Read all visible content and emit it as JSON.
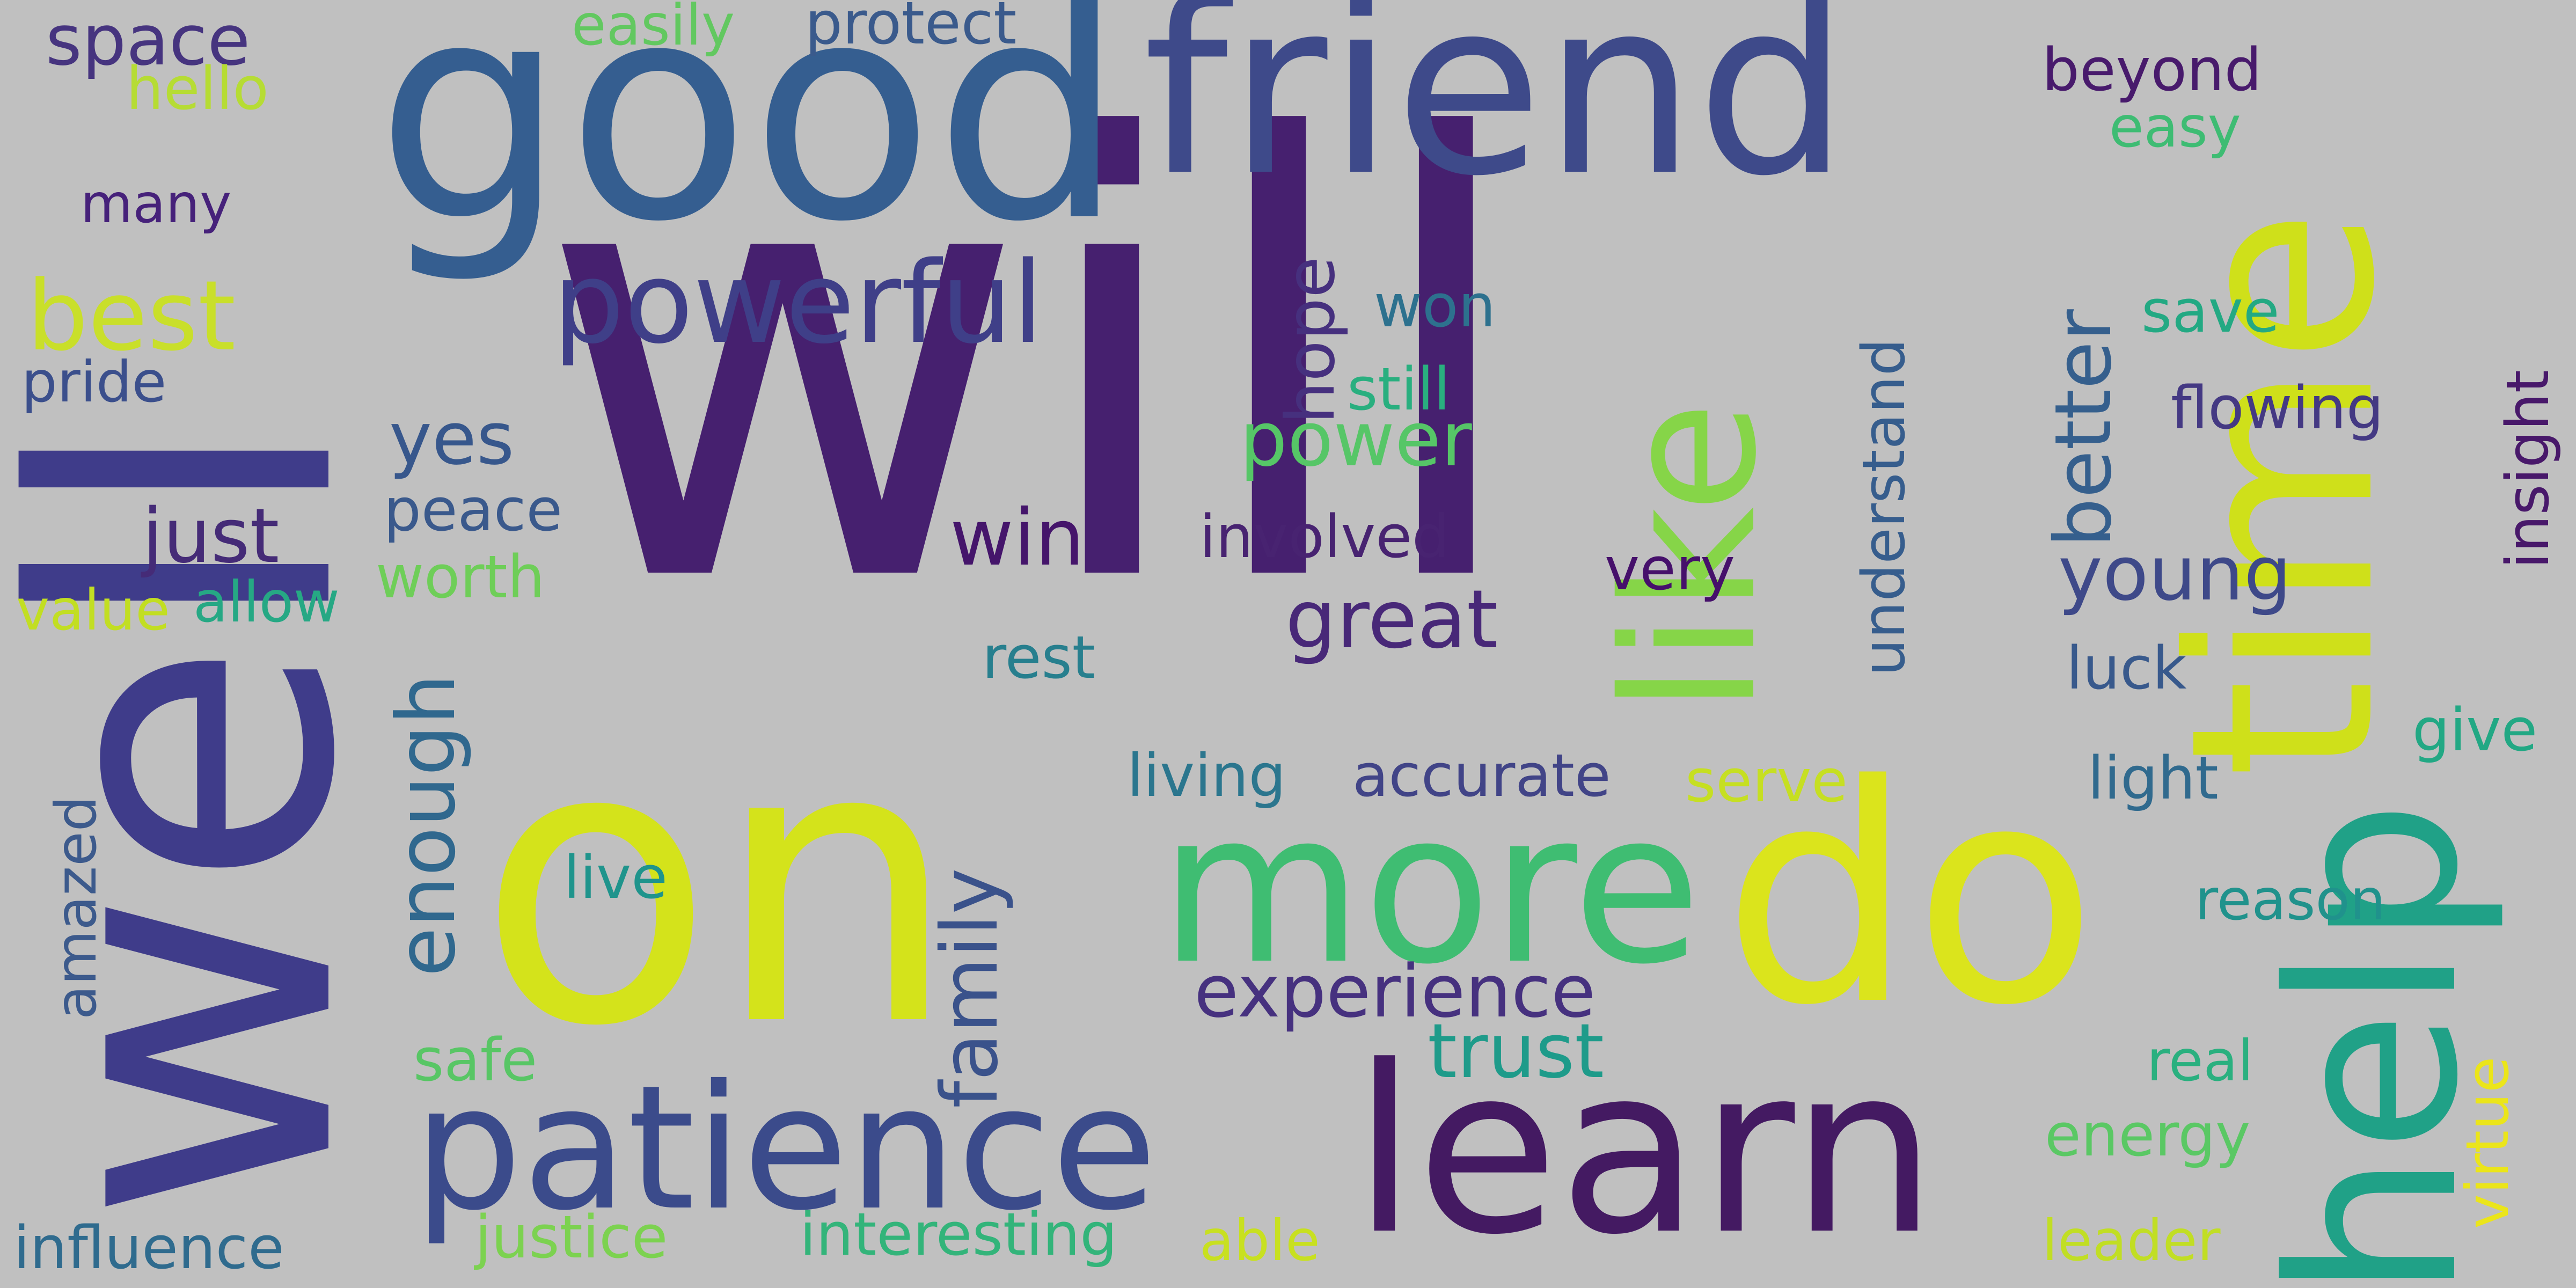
{
  "words": [
    {
      "text": "will",
      "color": "#46206f",
      "rotated": false
    },
    {
      "text": "well",
      "color": "#3f3c8a",
      "rotated": true
    },
    {
      "text": "on",
      "color": "#d4e31b",
      "rotated": false
    },
    {
      "text": "good",
      "color": "#355e90",
      "rotated": false
    },
    {
      "text": "friend",
      "color": "#3e4a8a",
      "rotated": false
    },
    {
      "text": "time",
      "color": "#cfe01a",
      "rotated": true
    },
    {
      "text": "like",
      "color": "#86d548",
      "rotated": true
    },
    {
      "text": "help",
      "color": "#20a187",
      "rotated": true
    },
    {
      "text": "do",
      "color": "#dbe41c",
      "rotated": false
    },
    {
      "text": "more",
      "color": "#3fbd72",
      "rotated": false
    },
    {
      "text": "learn",
      "color": "#441a62",
      "rotated": false
    },
    {
      "text": "patience",
      "color": "#3b4b8b",
      "rotated": false
    },
    {
      "text": "powerful",
      "color": "#3f3f88",
      "rotated": false
    },
    {
      "text": "best",
      "color": "#c9df2a",
      "rotated": false
    },
    {
      "text": "space",
      "color": "#46347f",
      "rotated": false
    },
    {
      "text": "hello",
      "color": "#b6dc34",
      "rotated": false
    },
    {
      "text": "easily",
      "color": "#62c860",
      "rotated": false
    },
    {
      "text": "protect",
      "color": "#3a5a8c",
      "rotated": false
    },
    {
      "text": "many",
      "color": "#46217a",
      "rotated": false
    },
    {
      "text": "pride",
      "color": "#3b4f8c",
      "rotated": false
    },
    {
      "text": "yes",
      "color": "#37578c",
      "rotated": false
    },
    {
      "text": "just",
      "color": "#452b77",
      "rotated": false
    },
    {
      "text": "peace",
      "color": "#3a598c",
      "rotated": false
    },
    {
      "text": "worth",
      "color": "#6ece58",
      "rotated": false
    },
    {
      "text": "allow",
      "color": "#26a884",
      "rotated": false
    },
    {
      "text": "value",
      "color": "#c2de22",
      "rotated": false
    },
    {
      "text": "enough",
      "color": "#30688e",
      "rotated": true
    },
    {
      "text": "amazed",
      "color": "#3c5a8c",
      "rotated": true
    },
    {
      "text": "live",
      "color": "#1f948c",
      "rotated": false
    },
    {
      "text": "safe",
      "color": "#58c665",
      "rotated": false
    },
    {
      "text": "influence",
      "color": "#2f6b8e",
      "rotated": false
    },
    {
      "text": "justice",
      "color": "#7cd250",
      "rotated": false
    },
    {
      "text": "interesting",
      "color": "#33b47a",
      "rotated": false
    },
    {
      "text": "able",
      "color": "#c8e020",
      "rotated": false
    },
    {
      "text": "family",
      "color": "#3a528b",
      "rotated": true
    },
    {
      "text": "experience",
      "color": "#46317f",
      "rotated": false
    },
    {
      "text": "trust",
      "color": "#1e9b8a",
      "rotated": false
    },
    {
      "text": "living",
      "color": "#2b768e",
      "rotated": false
    },
    {
      "text": "accurate",
      "color": "#414487",
      "rotated": false
    },
    {
      "text": "serve",
      "color": "#c6df22",
      "rotated": false
    },
    {
      "text": "great",
      "color": "#482878",
      "rotated": false
    },
    {
      "text": "win",
      "color": "#45156b",
      "rotated": false
    },
    {
      "text": "involved",
      "color": "#482371",
      "rotated": false
    },
    {
      "text": "rest",
      "color": "#277f8e",
      "rotated": false
    },
    {
      "text": "power",
      "color": "#56c667",
      "rotated": false
    },
    {
      "text": "hope",
      "color": "#46307e",
      "rotated": true
    },
    {
      "text": "won",
      "color": "#2d718e",
      "rotated": false
    },
    {
      "text": "still",
      "color": "#29af7f",
      "rotated": false
    },
    {
      "text": "very",
      "color": "#46106b",
      "rotated": false
    },
    {
      "text": "understand",
      "color": "#365d8d",
      "rotated": true
    },
    {
      "text": "better",
      "color": "#355f8d",
      "rotated": true
    },
    {
      "text": "young",
      "color": "#3e4989",
      "rotated": false
    },
    {
      "text": "beyond",
      "color": "#481a6c",
      "rotated": false
    },
    {
      "text": "easy",
      "color": "#3ebc73",
      "rotated": false
    },
    {
      "text": "save",
      "color": "#23a983",
      "rotated": false
    },
    {
      "text": "flowing",
      "color": "#443983",
      "rotated": false
    },
    {
      "text": "insight",
      "color": "#48186a",
      "rotated": true
    },
    {
      "text": "luck",
      "color": "#38598c",
      "rotated": false
    },
    {
      "text": "give",
      "color": "#22a884",
      "rotated": false
    },
    {
      "text": "light",
      "color": "#306a8e",
      "rotated": false
    },
    {
      "text": "reason",
      "color": "#20928c",
      "rotated": false
    },
    {
      "text": "real",
      "color": "#2ab07f",
      "rotated": false
    },
    {
      "text": "energy",
      "color": "#5ac864",
      "rotated": false
    },
    {
      "text": "virtue",
      "color": "#ebe51a",
      "rotated": true
    },
    {
      "text": "leader",
      "color": "#c1de24",
      "rotated": false
    }
  ]
}
